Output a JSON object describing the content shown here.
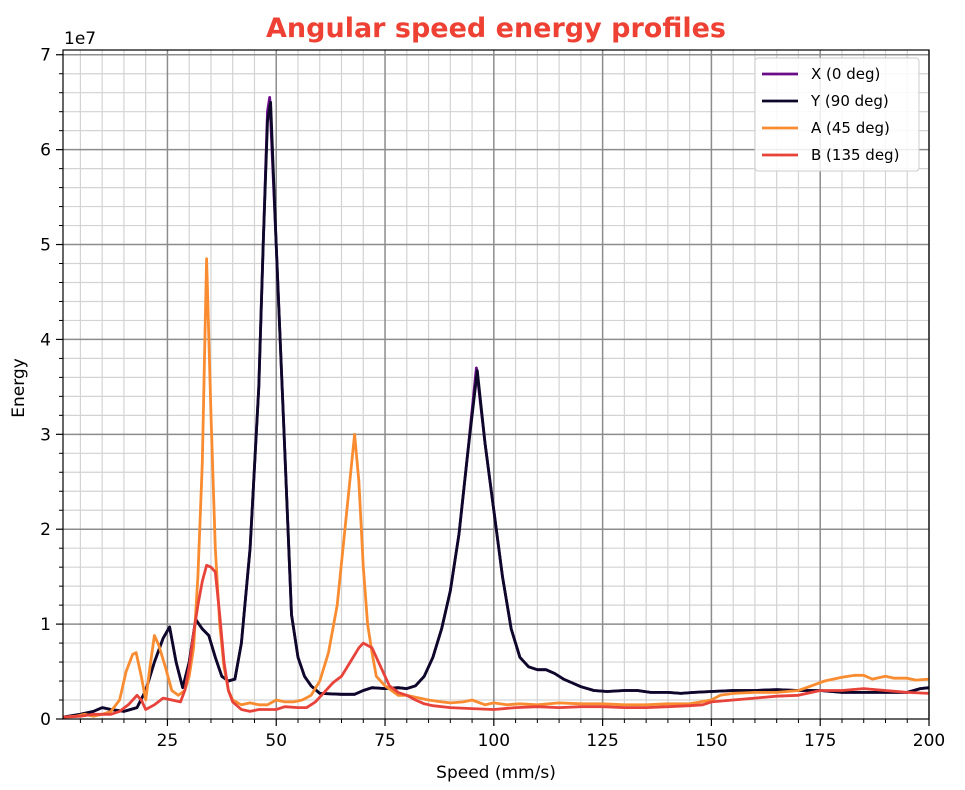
{
  "chart_data": {
    "type": "line",
    "title": "Angular speed energy profiles",
    "title_color": "#ee4033",
    "xlabel": "Speed (mm/s)",
    "ylabel": "Energy",
    "y_offset_text": "1e7",
    "xlim": [
      1,
      200
    ],
    "ylim": [
      0,
      7.05
    ],
    "xticks": [
      25,
      50,
      75,
      100,
      125,
      150,
      175,
      200
    ],
    "yticks": [
      0,
      1,
      2,
      3,
      4,
      5,
      6,
      7
    ],
    "grid": true,
    "legend_position": "top-right",
    "series": [
      {
        "name": "X (0 deg)",
        "color": "#6a0c88",
        "points": [
          [
            1,
            0.02
          ],
          [
            5,
            0.05
          ],
          [
            8,
            0.08
          ],
          [
            10,
            0.12
          ],
          [
            12,
            0.1
          ],
          [
            15,
            0.08
          ],
          [
            18,
            0.12
          ],
          [
            20,
            0.3
          ],
          [
            22,
            0.6
          ],
          [
            24,
            0.85
          ],
          [
            25.5,
            0.97
          ],
          [
            27,
            0.6
          ],
          [
            28.5,
            0.33
          ],
          [
            30,
            0.6
          ],
          [
            31.5,
            1.05
          ],
          [
            33,
            0.95
          ],
          [
            34.5,
            0.88
          ],
          [
            36,
            0.65
          ],
          [
            37.5,
            0.45
          ],
          [
            39,
            0.4
          ],
          [
            40.5,
            0.42
          ],
          [
            42,
            0.8
          ],
          [
            44,
            1.8
          ],
          [
            46,
            3.5
          ],
          [
            47,
            5.0
          ],
          [
            48,
            6.4
          ],
          [
            48.5,
            6.55
          ],
          [
            50,
            5.0
          ],
          [
            52,
            2.8
          ],
          [
            53.5,
            1.1
          ],
          [
            55,
            0.65
          ],
          [
            56.5,
            0.45
          ],
          [
            58,
            0.35
          ],
          [
            60,
            0.27
          ],
          [
            65,
            0.26
          ],
          [
            68,
            0.26
          ],
          [
            70,
            0.3
          ],
          [
            72,
            0.33
          ],
          [
            75,
            0.32
          ],
          [
            78,
            0.33
          ],
          [
            80,
            0.32
          ],
          [
            82,
            0.35
          ],
          [
            84,
            0.45
          ],
          [
            86,
            0.65
          ],
          [
            88,
            0.95
          ],
          [
            90,
            1.35
          ],
          [
            92,
            1.95
          ],
          [
            94,
            2.8
          ],
          [
            96,
            3.7
          ],
          [
            98,
            2.9
          ],
          [
            100,
            2.2
          ],
          [
            102,
            1.5
          ],
          [
            104,
            0.95
          ],
          [
            106,
            0.65
          ],
          [
            108,
            0.55
          ],
          [
            110,
            0.52
          ],
          [
            112,
            0.52
          ],
          [
            114,
            0.48
          ],
          [
            116,
            0.42
          ],
          [
            118,
            0.38
          ],
          [
            120,
            0.34
          ],
          [
            123,
            0.3
          ],
          [
            126,
            0.29
          ],
          [
            130,
            0.3
          ],
          [
            133,
            0.3
          ],
          [
            136,
            0.28
          ],
          [
            140,
            0.28
          ],
          [
            143,
            0.27
          ],
          [
            146,
            0.28
          ],
          [
            150,
            0.29
          ],
          [
            155,
            0.3
          ],
          [
            160,
            0.3
          ],
          [
            165,
            0.31
          ],
          [
            170,
            0.3
          ],
          [
            175,
            0.3
          ],
          [
            180,
            0.28
          ],
          [
            185,
            0.28
          ],
          [
            190,
            0.28
          ],
          [
            195,
            0.28
          ],
          [
            198,
            0.32
          ],
          [
            200,
            0.33
          ]
        ]
      },
      {
        "name": "Y (90 deg)",
        "color": "#0d0829",
        "points": [
          [
            1,
            0.02
          ],
          [
            5,
            0.05
          ],
          [
            8,
            0.08
          ],
          [
            10,
            0.12
          ],
          [
            12,
            0.1
          ],
          [
            15,
            0.08
          ],
          [
            18,
            0.12
          ],
          [
            20,
            0.3
          ],
          [
            22,
            0.6
          ],
          [
            24,
            0.85
          ],
          [
            25.5,
            0.97
          ],
          [
            27,
            0.6
          ],
          [
            28.5,
            0.33
          ],
          [
            30,
            0.6
          ],
          [
            31.5,
            1.05
          ],
          [
            33,
            0.95
          ],
          [
            34.5,
            0.88
          ],
          [
            36,
            0.65
          ],
          [
            37.5,
            0.45
          ],
          [
            39,
            0.4
          ],
          [
            40.5,
            0.42
          ],
          [
            42,
            0.8
          ],
          [
            44,
            1.8
          ],
          [
            46,
            3.5
          ],
          [
            47,
            5.0
          ],
          [
            48,
            6.3
          ],
          [
            48.7,
            6.5
          ],
          [
            50,
            5.0
          ],
          [
            52,
            2.8
          ],
          [
            53.5,
            1.1
          ],
          [
            55,
            0.65
          ],
          [
            56.5,
            0.45
          ],
          [
            58,
            0.35
          ],
          [
            60,
            0.27
          ],
          [
            65,
            0.26
          ],
          [
            68,
            0.26
          ],
          [
            70,
            0.3
          ],
          [
            72,
            0.33
          ],
          [
            75,
            0.32
          ],
          [
            78,
            0.33
          ],
          [
            80,
            0.32
          ],
          [
            82,
            0.35
          ],
          [
            84,
            0.45
          ],
          [
            86,
            0.65
          ],
          [
            88,
            0.95
          ],
          [
            90,
            1.35
          ],
          [
            92,
            1.95
          ],
          [
            94,
            2.8
          ],
          [
            96.2,
            3.67
          ],
          [
            98,
            2.9
          ],
          [
            100,
            2.2
          ],
          [
            102,
            1.5
          ],
          [
            104,
            0.95
          ],
          [
            106,
            0.65
          ],
          [
            108,
            0.55
          ],
          [
            110,
            0.52
          ],
          [
            112,
            0.52
          ],
          [
            114,
            0.48
          ],
          [
            116,
            0.42
          ],
          [
            118,
            0.38
          ],
          [
            120,
            0.34
          ],
          [
            123,
            0.3
          ],
          [
            126,
            0.29
          ],
          [
            130,
            0.3
          ],
          [
            133,
            0.3
          ],
          [
            136,
            0.28
          ],
          [
            140,
            0.28
          ],
          [
            143,
            0.27
          ],
          [
            146,
            0.28
          ],
          [
            150,
            0.29
          ],
          [
            155,
            0.3
          ],
          [
            160,
            0.3
          ],
          [
            165,
            0.31
          ],
          [
            170,
            0.3
          ],
          [
            175,
            0.3
          ],
          [
            180,
            0.28
          ],
          [
            185,
            0.28
          ],
          [
            190,
            0.28
          ],
          [
            195,
            0.28
          ],
          [
            198,
            0.32
          ],
          [
            200,
            0.33
          ]
        ]
      },
      {
        "name": "A (45 deg)",
        "color": "#f98c30",
        "points": [
          [
            1,
            0.02
          ],
          [
            4,
            0.03
          ],
          [
            6,
            0.05
          ],
          [
            8,
            0.03
          ],
          [
            10,
            0.05
          ],
          [
            12,
            0.08
          ],
          [
            14,
            0.2
          ],
          [
            15.5,
            0.5
          ],
          [
            17,
            0.68
          ],
          [
            17.8,
            0.7
          ],
          [
            19,
            0.45
          ],
          [
            20,
            0.2
          ],
          [
            21,
            0.55
          ],
          [
            22,
            0.88
          ],
          [
            23,
            0.78
          ],
          [
            24.5,
            0.55
          ],
          [
            26,
            0.3
          ],
          [
            27.5,
            0.25
          ],
          [
            29,
            0.3
          ],
          [
            30,
            0.45
          ],
          [
            31,
            0.75
          ],
          [
            32,
            1.5
          ],
          [
            33,
            2.7
          ],
          [
            34,
            4.85
          ],
          [
            35,
            3.2
          ],
          [
            36,
            1.8
          ],
          [
            37,
            1.0
          ],
          [
            38,
            0.55
          ],
          [
            39,
            0.3
          ],
          [
            40,
            0.2
          ],
          [
            42,
            0.15
          ],
          [
            44,
            0.17
          ],
          [
            46,
            0.15
          ],
          [
            48,
            0.15
          ],
          [
            50,
            0.2
          ],
          [
            52,
            0.18
          ],
          [
            54,
            0.18
          ],
          [
            56,
            0.2
          ],
          [
            58,
            0.25
          ],
          [
            60,
            0.4
          ],
          [
            62,
            0.7
          ],
          [
            64,
            1.2
          ],
          [
            66,
            2.1
          ],
          [
            68,
            3.0
          ],
          [
            69,
            2.5
          ],
          [
            70,
            1.6
          ],
          [
            71,
            1.0
          ],
          [
            72,
            0.7
          ],
          [
            73,
            0.45
          ],
          [
            75,
            0.35
          ],
          [
            78,
            0.25
          ],
          [
            80,
            0.25
          ],
          [
            82,
            0.23
          ],
          [
            85,
            0.2
          ],
          [
            88,
            0.18
          ],
          [
            90,
            0.17
          ],
          [
            93,
            0.18
          ],
          [
            95,
            0.2
          ],
          [
            98,
            0.15
          ],
          [
            100,
            0.17
          ],
          [
            103,
            0.15
          ],
          [
            106,
            0.16
          ],
          [
            110,
            0.15
          ],
          [
            115,
            0.17
          ],
          [
            120,
            0.16
          ],
          [
            125,
            0.16
          ],
          [
            130,
            0.15
          ],
          [
            135,
            0.15
          ],
          [
            140,
            0.16
          ],
          [
            145,
            0.16
          ],
          [
            150,
            0.2
          ],
          [
            152,
            0.25
          ],
          [
            155,
            0.27
          ],
          [
            160,
            0.28
          ],
          [
            165,
            0.28
          ],
          [
            170,
            0.3
          ],
          [
            173,
            0.35
          ],
          [
            176,
            0.4
          ],
          [
            180,
            0.44
          ],
          [
            183,
            0.46
          ],
          [
            185,
            0.46
          ],
          [
            187,
            0.42
          ],
          [
            190,
            0.45
          ],
          [
            192,
            0.43
          ],
          [
            195,
            0.43
          ],
          [
            197,
            0.41
          ],
          [
            200,
            0.42
          ]
        ]
      },
      {
        "name": "B (135 deg)",
        "color": "#e8433a",
        "points": [
          [
            1,
            0.02
          ],
          [
            5,
            0.03
          ],
          [
            8,
            0.05
          ],
          [
            10,
            0.05
          ],
          [
            12,
            0.05
          ],
          [
            14,
            0.08
          ],
          [
            16,
            0.15
          ],
          [
            18,
            0.25
          ],
          [
            19,
            0.2
          ],
          [
            20,
            0.1
          ],
          [
            22,
            0.15
          ],
          [
            24,
            0.22
          ],
          [
            26,
            0.2
          ],
          [
            28,
            0.18
          ],
          [
            29,
            0.3
          ],
          [
            30,
            0.55
          ],
          [
            31,
            0.9
          ],
          [
            32,
            1.2
          ],
          [
            33,
            1.45
          ],
          [
            34,
            1.62
          ],
          [
            35,
            1.6
          ],
          [
            36,
            1.55
          ],
          [
            37,
            1.1
          ],
          [
            38,
            0.6
          ],
          [
            39,
            0.3
          ],
          [
            40,
            0.18
          ],
          [
            42,
            0.1
          ],
          [
            44,
            0.08
          ],
          [
            46,
            0.1
          ],
          [
            48,
            0.1
          ],
          [
            50,
            0.1
          ],
          [
            52,
            0.13
          ],
          [
            55,
            0.12
          ],
          [
            57,
            0.12
          ],
          [
            59,
            0.18
          ],
          [
            61,
            0.28
          ],
          [
            63,
            0.38
          ],
          [
            65,
            0.45
          ],
          [
            67,
            0.6
          ],
          [
            69,
            0.75
          ],
          [
            70,
            0.8
          ],
          [
            72,
            0.75
          ],
          [
            74,
            0.55
          ],
          [
            76,
            0.35
          ],
          [
            78,
            0.28
          ],
          [
            80,
            0.25
          ],
          [
            82,
            0.2
          ],
          [
            84,
            0.16
          ],
          [
            86,
            0.14
          ],
          [
            90,
            0.12
          ],
          [
            95,
            0.11
          ],
          [
            100,
            0.1
          ],
          [
            105,
            0.12
          ],
          [
            110,
            0.13
          ],
          [
            115,
            0.12
          ],
          [
            120,
            0.13
          ],
          [
            125,
            0.13
          ],
          [
            130,
            0.12
          ],
          [
            135,
            0.12
          ],
          [
            140,
            0.13
          ],
          [
            145,
            0.14
          ],
          [
            148,
            0.15
          ],
          [
            150,
            0.18
          ],
          [
            155,
            0.2
          ],
          [
            160,
            0.22
          ],
          [
            165,
            0.24
          ],
          [
            170,
            0.25
          ],
          [
            175,
            0.3
          ],
          [
            180,
            0.3
          ],
          [
            185,
            0.32
          ],
          [
            190,
            0.3
          ],
          [
            195,
            0.28
          ],
          [
            200,
            0.27
          ]
        ]
      }
    ]
  }
}
